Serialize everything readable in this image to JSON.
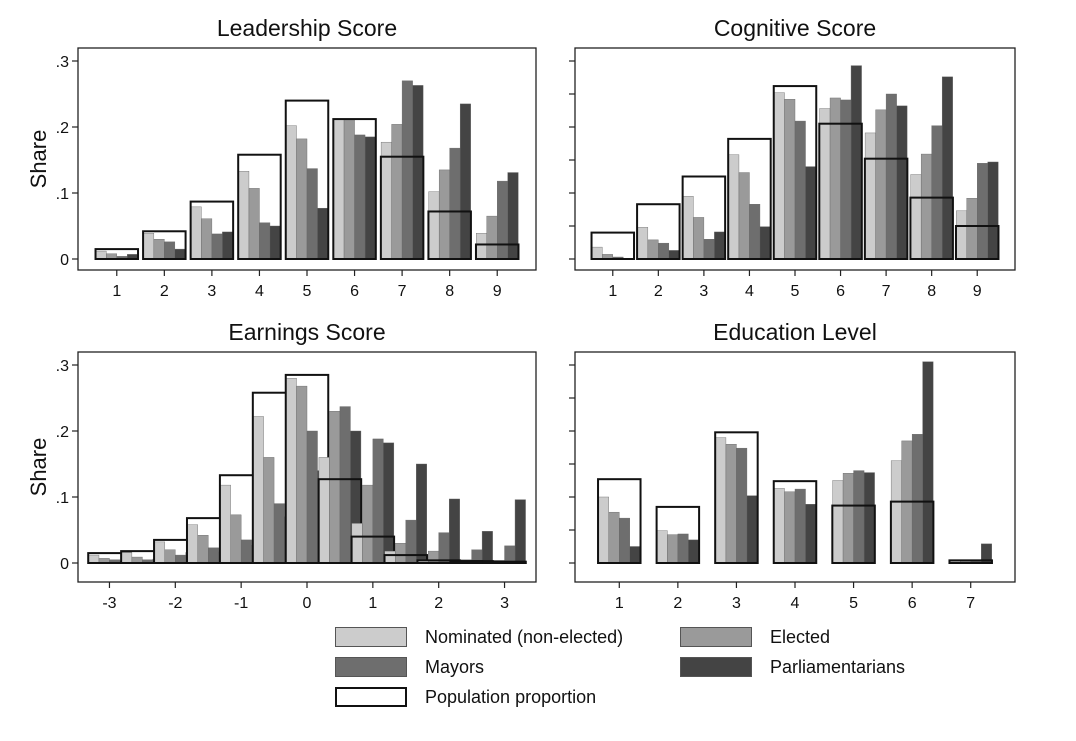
{
  "figure": {
    "series": [
      {
        "key": "nominated",
        "name": "Nominated (non-elected)",
        "color": "#cccccc"
      },
      {
        "key": "elected",
        "name": "Elected",
        "color": "#9a9a9a"
      },
      {
        "key": "mayors",
        "name": "Mayors",
        "color": "#6e6e6e"
      },
      {
        "key": "parliamentarians",
        "name": "Parliamentarians",
        "color": "#444444"
      },
      {
        "key": "population",
        "name": "Population proportion",
        "color": "#ffffff"
      }
    ]
  },
  "chart_data": [
    {
      "type": "bar",
      "title": "Leadership Score",
      "ylabel": "Share",
      "show_ytick_labels": true,
      "ylim": [
        0,
        0.31
      ],
      "yticks": [
        0,
        0.1,
        0.2,
        0.3
      ],
      "ytick_labels": [
        "0",
        ".1",
        ".2",
        ".3"
      ],
      "categories": [
        "1",
        "2",
        "3",
        "4",
        "5",
        "6",
        "7",
        "8",
        "9"
      ],
      "population": [
        0.015,
        0.042,
        0.087,
        0.158,
        0.24,
        0.212,
        0.155,
        0.072,
        0.022
      ],
      "series": [
        {
          "name": "Nominated (non-elected)",
          "values": [
            0.012,
            0.039,
            0.079,
            0.133,
            0.202,
            0.211,
            0.177,
            0.102,
            0.039
          ]
        },
        {
          "name": "Elected",
          "values": [
            0.008,
            0.03,
            0.061,
            0.107,
            0.182,
            0.211,
            0.204,
            0.135,
            0.065
          ]
        },
        {
          "name": "Mayors",
          "values": [
            0.004,
            0.026,
            0.038,
            0.055,
            0.137,
            0.188,
            0.27,
            0.168,
            0.118
          ]
        },
        {
          "name": "Parliamentarians",
          "values": [
            0.007,
            0.015,
            0.041,
            0.05,
            0.077,
            0.185,
            0.263,
            0.235,
            0.131
          ]
        }
      ]
    },
    {
      "type": "bar",
      "title": "Cognitive Score",
      "ylabel": "",
      "show_ytick_labels": false,
      "ylim": [
        0,
        0.31
      ],
      "yticks": [
        0,
        0.05,
        0.1,
        0.15,
        0.2,
        0.25,
        0.3
      ],
      "ytick_labels": [
        "",
        "",
        "",
        "",
        "",
        "",
        ""
      ],
      "categories": [
        "1",
        "2",
        "3",
        "4",
        "5",
        "6",
        "7",
        "8",
        "9"
      ],
      "population": [
        0.04,
        0.083,
        0.125,
        0.182,
        0.262,
        0.205,
        0.152,
        0.093,
        0.05
      ],
      "series": [
        {
          "name": "Nominated (non-elected)",
          "values": [
            0.018,
            0.048,
            0.095,
            0.158,
            0.252,
            0.228,
            0.191,
            0.128,
            0.073
          ]
        },
        {
          "name": "Elected",
          "values": [
            0.007,
            0.029,
            0.063,
            0.131,
            0.242,
            0.244,
            0.226,
            0.159,
            0.092
          ]
        },
        {
          "name": "Mayors",
          "values": [
            0.003,
            0.024,
            0.03,
            0.083,
            0.209,
            0.241,
            0.25,
            0.202,
            0.145
          ]
        },
        {
          "name": "Parliamentarians",
          "values": [
            0.001,
            0.013,
            0.041,
            0.049,
            0.14,
            0.293,
            0.232,
            0.276,
            0.147
          ]
        }
      ]
    },
    {
      "type": "bar",
      "title": "Earnings Score",
      "ylabel": "Share",
      "show_ytick_labels": true,
      "ylim": [
        0,
        0.31
      ],
      "yticks": [
        0,
        0.1,
        0.2,
        0.3
      ],
      "ytick_labels": [
        "0",
        ".1",
        ".2",
        ".3"
      ],
      "categories": [
        "-3",
        "-2.5",
        "-2",
        "-1.5",
        "-1",
        "-0.5",
        "0",
        "0.5",
        "1",
        "1.5",
        "2",
        "2.5",
        "3"
      ],
      "xtick_labels": [
        "-3",
        "",
        "-2",
        "",
        "-1",
        "",
        "0",
        "",
        "1",
        "",
        "2",
        "",
        "3"
      ],
      "population": [
        0.015,
        0.018,
        0.035,
        0.068,
        0.133,
        0.258,
        0.285,
        0.127,
        0.04,
        0.012,
        0.004,
        0.003,
        0.002
      ],
      "series": [
        {
          "name": "Nominated (non-elected)",
          "values": [
            0.012,
            0.016,
            0.032,
            0.058,
            0.118,
            0.222,
            0.28,
            0.16,
            0.06,
            0.018,
            0.005,
            0.002,
            0.003
          ]
        },
        {
          "name": "Elected",
          "values": [
            0.007,
            0.009,
            0.02,
            0.042,
            0.073,
            0.16,
            0.268,
            0.23,
            0.118,
            0.03,
            0.018,
            0.005,
            0.004
          ]
        },
        {
          "name": "Mayors",
          "values": [
            0.005,
            0.005,
            0.012,
            0.023,
            0.035,
            0.09,
            0.2,
            0.237,
            0.188,
            0.065,
            0.046,
            0.02,
            0.026
          ]
        },
        {
          "name": "Parliamentarians",
          "values": [
            0.003,
            0.006,
            0.016,
            0.017,
            0.027,
            0.07,
            0.14,
            0.2,
            0.182,
            0.15,
            0.097,
            0.048,
            0.096
          ]
        }
      ]
    },
    {
      "type": "bar",
      "title": "Education Level",
      "ylabel": "",
      "show_ytick_labels": false,
      "ylim": [
        0,
        0.31
      ],
      "yticks": [
        0,
        0.05,
        0.1,
        0.15,
        0.2,
        0.25,
        0.3
      ],
      "ytick_labels": [
        "",
        "",
        "",
        "",
        "",
        "",
        ""
      ],
      "categories": [
        "1",
        "2",
        "3",
        "4",
        "5",
        "6",
        "7"
      ],
      "population": [
        0.127,
        0.085,
        0.198,
        0.124,
        0.087,
        0.093,
        0.004
      ],
      "series": [
        {
          "name": "Nominated (non-elected)",
          "values": [
            0.1,
            0.049,
            0.19,
            0.113,
            0.125,
            0.155,
            0.003
          ]
        },
        {
          "name": "Elected",
          "values": [
            0.077,
            0.043,
            0.18,
            0.108,
            0.136,
            0.185,
            0.004
          ]
        },
        {
          "name": "Mayors",
          "values": [
            0.068,
            0.044,
            0.174,
            0.112,
            0.14,
            0.195,
            0.005
          ]
        },
        {
          "name": "Parliamentarians",
          "values": [
            0.025,
            0.035,
            0.102,
            0.089,
            0.137,
            0.305,
            0.029
          ]
        }
      ]
    }
  ]
}
